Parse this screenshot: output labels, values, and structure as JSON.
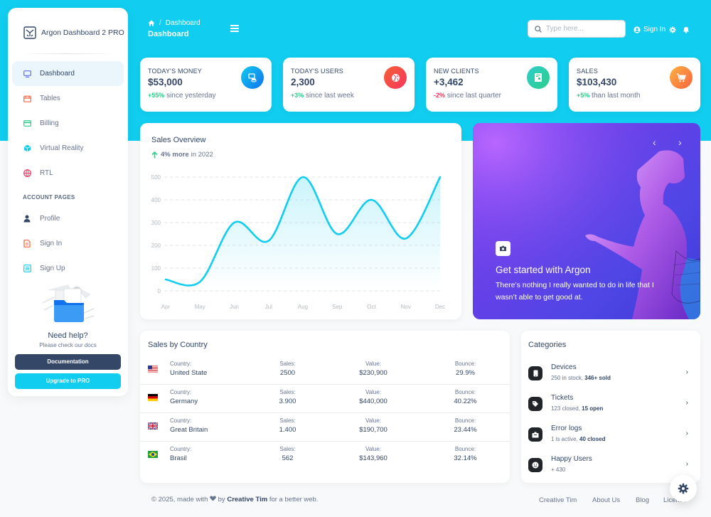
{
  "brand": {
    "name": "Argon Dashboard 2 PRO"
  },
  "sidebar": {
    "items": [
      {
        "label": "Dashboard",
        "icon": "tv-icon",
        "active": true
      },
      {
        "label": "Tables",
        "icon": "calendar-icon"
      },
      {
        "label": "Billing",
        "icon": "credit-card-icon"
      },
      {
        "label": "Virtual Reality",
        "icon": "cube-icon"
      },
      {
        "label": "RTL",
        "icon": "globe-icon"
      }
    ],
    "section_title": "ACCOUNT PAGES",
    "account_items": [
      {
        "label": "Profile",
        "icon": "user-icon"
      },
      {
        "label": "Sign In",
        "icon": "document-icon"
      },
      {
        "label": "Sign Up",
        "icon": "collection-icon"
      }
    ]
  },
  "help": {
    "title": "Need help?",
    "subtitle": "Please check our docs",
    "doc_button": "Documentation",
    "pro_button": "Upgrade to PRO"
  },
  "header": {
    "breadcrumb_current": "Dashboard",
    "title": "Dashboard",
    "search_placeholder": "Type here...",
    "signin_label": "Sign In"
  },
  "stats": [
    {
      "label": "TODAY'S MONEY",
      "value": "$53,000",
      "change": "+55%",
      "note": "since yesterday",
      "trend": "up",
      "icon": "money-coins-icon",
      "color": "#11cdef"
    },
    {
      "label": "TODAY'S USERS",
      "value": "2,300",
      "change": "+3%",
      "note": "since last week",
      "trend": "up",
      "icon": "world-icon",
      "color": "#f5365c"
    },
    {
      "label": "NEW CLIENTS",
      "value": "+3,462",
      "change": "-2%",
      "note": "since last quarter",
      "trend": "down",
      "icon": "paper-diploma-icon",
      "color": "#2dce89"
    },
    {
      "label": "SALES",
      "value": "$103,430",
      "change": "+5%",
      "note": "than last month",
      "trend": "up",
      "icon": "cart-icon",
      "color": "#fb6340"
    }
  ],
  "sales_overview": {
    "title": "Sales Overview",
    "change": "4% more",
    "period": "in 2022"
  },
  "chart_data": {
    "type": "line",
    "categories": [
      "Apr",
      "May",
      "Jun",
      "Jul",
      "Aug",
      "Sep",
      "Oct",
      "Nov",
      "Dec"
    ],
    "series": [
      {
        "values": [
          50,
          40,
          300,
          220,
          500,
          250,
          400,
          230,
          500
        ]
      }
    ],
    "yticks": [
      0,
      100,
      200,
      300,
      400,
      500
    ],
    "ylim": [
      0,
      500
    ],
    "grid": true,
    "line_color": "#11cdef"
  },
  "carousel": {
    "title": "Get started with Argon",
    "text": "There’s nothing I really wanted to do in life that I wasn’t able to get good at."
  },
  "countries": {
    "title": "Sales by Country",
    "labels": {
      "country": "Country:",
      "sales": "Sales:",
      "value": "Value:",
      "bounce": "Bounce:"
    },
    "rows": [
      {
        "flag": "us-flag",
        "country": "United State",
        "sales": "2500",
        "value": "$230,900",
        "bounce": "29.9%"
      },
      {
        "flag": "de-flag",
        "country": "Germany",
        "sales": "3.900",
        "value": "$440,000",
        "bounce": "40.22%"
      },
      {
        "flag": "gb-flag",
        "country": "Great Britain",
        "sales": "1.400",
        "value": "$190,700",
        "bounce": "23.44%"
      },
      {
        "flag": "br-flag",
        "country": "Brasil",
        "sales": "562",
        "value": "$143,960",
        "bounce": "32.14%"
      }
    ]
  },
  "categories": {
    "title": "Categories",
    "items": [
      {
        "name": "Devices",
        "desc": "250 in stock, ",
        "desc_bold": "346+ sold",
        "icon": "mobile-icon"
      },
      {
        "name": "Tickets",
        "desc": "123 closed, ",
        "desc_bold": "15 open",
        "icon": "tag-icon"
      },
      {
        "name": "Error logs",
        "desc": "1 is active, ",
        "desc_bold": "40 closed",
        "icon": "box-icon"
      },
      {
        "name": "Happy Users",
        "desc": "+ 430",
        "desc_bold": "",
        "icon": "smile-icon"
      }
    ]
  },
  "footer": {
    "copyright_pre": "© 2025, made with",
    "copyright_by": "by",
    "author": "Creative Tim",
    "copyright_post": "for a better web.",
    "links": [
      "Creative Tim",
      "About Us",
      "Blog",
      "License"
    ]
  }
}
